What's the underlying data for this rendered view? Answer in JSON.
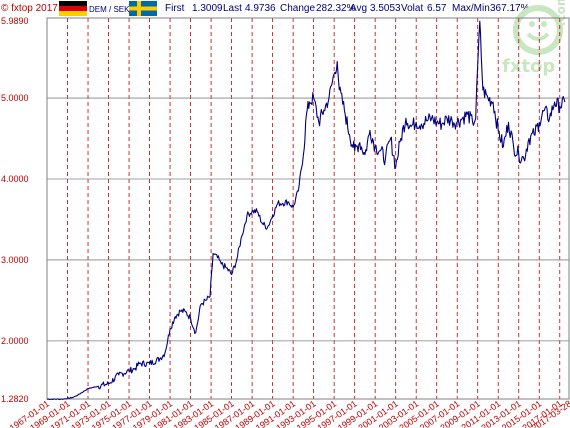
{
  "header": {
    "copyright": "© fxtop 2017",
    "pair": "DEM / SEK",
    "first_label": "First",
    "first_value": "1.3009",
    "last_label": "Last",
    "last_value": "4.9736",
    "change_label": "Change",
    "change_value": "282.32%",
    "avg_label": "Avg",
    "avg_value": "3.5053",
    "volat_label": "Volat",
    "volat_value": "6.57",
    "maxmin_label": "Max/Min",
    "maxmin_value": "367.17%"
  },
  "logo": {
    "text": "fxtop",
    "suffix": ".com"
  },
  "colors": {
    "line": "#00007f",
    "grid": "#c00000",
    "label": "#c00000",
    "header_text": "#00007f",
    "logo": "#c8e6c0"
  },
  "chart_data": {
    "type": "line",
    "series": [
      {
        "x": [
          1967,
          1968.5,
          1969.5,
          1970,
          1971,
          1972,
          1973,
          1974,
          1975,
          1975.6,
          1976,
          1977,
          1978,
          1978.5,
          1979,
          1979.5,
          1980,
          1980.5,
          1981,
          1981.5,
          1982,
          1982.5,
          1982.9,
          1983.2,
          1983.8,
          1984,
          1984.5,
          1985,
          1985.5,
          1986,
          1986.5,
          1987,
          1987.5,
          1988,
          1988.5,
          1989,
          1989.5,
          1990,
          1990.5,
          1991,
          1991.5,
          1992,
          1992.3,
          1992.6,
          1993,
          1993.5,
          1994,
          1994.5,
          1995,
          1995.3,
          1995.5,
          1996,
          1996.5,
          1997,
          1997.5,
          1998,
          1998.5,
          1999,
          1999.5,
          2000,
          2000.5,
          2001,
          2001.5,
          2002,
          2002.5,
          2003,
          2003.5,
          2004,
          2004.5,
          2005,
          2005.5,
          2006,
          2006.5,
          2007,
          2007.5,
          2008,
          2008.5,
          2008.8,
          2009,
          2009.2,
          2009.5,
          2010,
          2010.5,
          2011,
          2011.5,
          2012,
          2012.5,
          2013,
          2013.5,
          2014,
          2014.5,
          2015,
          2015.5,
          2016,
          2016.5,
          2017,
          2017.5
        ],
        "y": [
          1.28,
          1.28,
          1.3,
          1.33,
          1.41,
          1.44,
          1.47,
          1.58,
          1.63,
          1.66,
          1.72,
          1.72,
          1.78,
          1.85,
          2.15,
          2.3,
          2.37,
          2.36,
          2.28,
          2.1,
          2.45,
          2.5,
          2.55,
          3.08,
          3.0,
          2.95,
          2.9,
          2.82,
          3.0,
          3.3,
          3.55,
          3.6,
          3.6,
          3.45,
          3.4,
          3.55,
          3.7,
          3.7,
          3.72,
          3.65,
          3.85,
          4.3,
          4.8,
          4.95,
          5.0,
          4.7,
          4.85,
          5.0,
          5.3,
          5.45,
          5.1,
          4.85,
          4.55,
          4.35,
          4.45,
          4.3,
          4.6,
          4.4,
          4.35,
          4.25,
          4.5,
          4.15,
          4.5,
          4.75,
          4.65,
          4.7,
          4.68,
          4.72,
          4.75,
          4.7,
          4.68,
          4.75,
          4.72,
          4.7,
          4.75,
          4.8,
          4.7,
          4.75,
          5.4,
          5.95,
          5.1,
          5.0,
          4.95,
          4.6,
          4.4,
          4.7,
          4.4,
          4.3,
          4.25,
          4.5,
          4.55,
          4.7,
          4.85,
          4.75,
          4.95,
          4.9,
          4.95
        ]
      }
    ],
    "ylim": [
      1.282,
      5.989
    ],
    "xlim": [
      1967,
      2017.9
    ],
    "y_ticks": [
      {
        "value": 5.989,
        "label": "5.9890"
      },
      {
        "value": 5.0,
        "label": "5.0000"
      },
      {
        "value": 4.0,
        "label": "4.0000"
      },
      {
        "value": 3.0,
        "label": "3.0000"
      },
      {
        "value": 2.0,
        "label": "2.0000"
      },
      {
        "value": 1.282,
        "label": "1.2820"
      }
    ],
    "x_ticks": [
      {
        "value": 1967.0,
        "label": "1967-01-01"
      },
      {
        "value": 1969.0,
        "label": "1969-01-01"
      },
      {
        "value": 1971.0,
        "label": "1971-01-01"
      },
      {
        "value": 1973.0,
        "label": "1973-01-01"
      },
      {
        "value": 1975.0,
        "label": "1975-01-01"
      },
      {
        "value": 1977.0,
        "label": "1977-01-01"
      },
      {
        "value": 1979.0,
        "label": "1979-01-01"
      },
      {
        "value": 1981.0,
        "label": "1981-01-01"
      },
      {
        "value": 1983.0,
        "label": "1983-01-01"
      },
      {
        "value": 1985.0,
        "label": "1985-01-01"
      },
      {
        "value": 1987.0,
        "label": "1987-01-01"
      },
      {
        "value": 1989.0,
        "label": "1989-01-01"
      },
      {
        "value": 1991.0,
        "label": "1991-01-01"
      },
      {
        "value": 1993.0,
        "label": "1993-01-01"
      },
      {
        "value": 1995.0,
        "label": "1995-01-01"
      },
      {
        "value": 1997.0,
        "label": "1997-01-01"
      },
      {
        "value": 1999.0,
        "label": "1999-01-01"
      },
      {
        "value": 2001.0,
        "label": "2001-01-01"
      },
      {
        "value": 2003.0,
        "label": "2003-01-01"
      },
      {
        "value": 2005.0,
        "label": "2005-01-01"
      },
      {
        "value": 2007.0,
        "label": "2007-01-01"
      },
      {
        "value": 2009.0,
        "label": "2009-01-01"
      },
      {
        "value": 2011.0,
        "label": "2011-01-01"
      },
      {
        "value": 2013.0,
        "label": "2013-01-01"
      },
      {
        "value": 2015.0,
        "label": "2015-01-01"
      },
      {
        "value": 2017.0,
        "label": "2017-01-01"
      },
      {
        "value": 2017.9,
        "label": "2017-03-28"
      }
    ],
    "grid": true
  }
}
